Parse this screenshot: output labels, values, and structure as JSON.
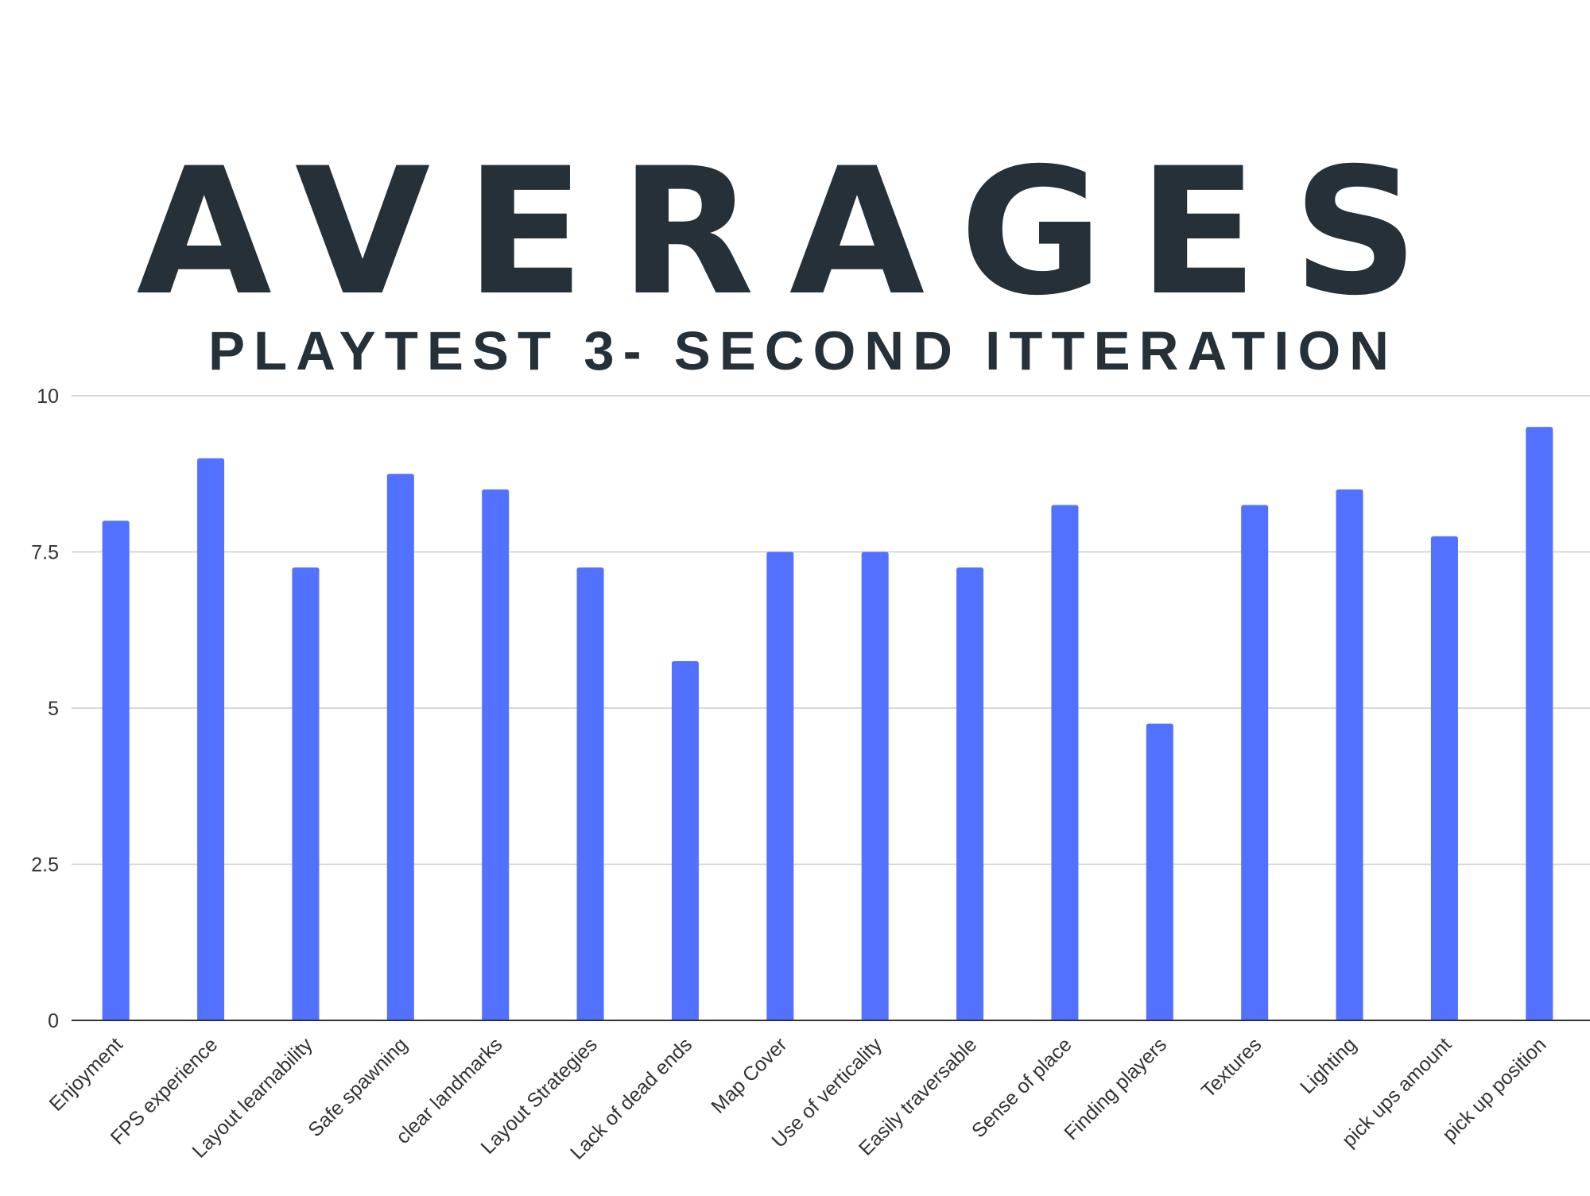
{
  "chart_data": {
    "type": "bar",
    "title": "AVERAGES",
    "subtitle": "PLAYTEST 3- SECOND ITTERATION",
    "categories": [
      "Enjoyment",
      "FPS experience",
      "Layout learnability",
      "Safe spawning",
      "clear landmarks",
      "Layout Strategies",
      "Lack of dead ends",
      "Map Cover",
      "Use of verticality",
      "Easily traversable",
      "Sense of place",
      "Finding players",
      "Textures",
      "Lighting",
      "pick ups amount",
      "pick up position"
    ],
    "series": [
      {
        "values": [
          8,
          9,
          7.25,
          8.75,
          8.5,
          7.25,
          5.75,
          7.5,
          7.5,
          7.25,
          8.25,
          4.75,
          8.25,
          8.5,
          7.75,
          9.5
        ]
      }
    ],
    "yticks": [
      "0",
      "2.5",
      "5",
      "7.5",
      "10"
    ],
    "ylim": [
      0,
      10
    ],
    "grid": true,
    "legend": "none",
    "bar_color": "#5271ff",
    "grid_color": "#cccccc",
    "text_color": "#263038"
  }
}
